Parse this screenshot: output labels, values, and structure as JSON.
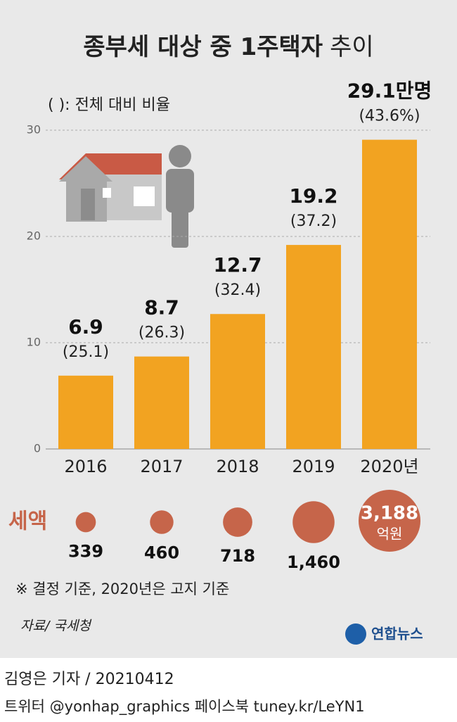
{
  "chart_data": {
    "type": "bar",
    "title": "종부세 대상 중 1주택자",
    "title_suffix": "추이",
    "ratio_note": "( ): 전체 대비 비율",
    "categories": [
      "2016",
      "2017",
      "2018",
      "2019",
      "2020년"
    ],
    "values": [
      6.9,
      8.7,
      12.7,
      19.2,
      29.1
    ],
    "value_labels": [
      "6.9",
      "8.7",
      "12.7",
      "19.2",
      "29.1만명"
    ],
    "ratios": [
      25.1,
      26.3,
      32.4,
      37.2,
      43.6
    ],
    "ratio_labels": [
      "(25.1)",
      "(26.3)",
      "(32.4)",
      "(37.2)",
      "(43.6%)"
    ],
    "color": "#f2a321",
    "ylim": [
      0,
      30
    ],
    "yticks": [
      0,
      10,
      20,
      30
    ],
    "grid": true,
    "tax_title": "세액",
    "tax_values": [
      339,
      460,
      718,
      1460,
      3188
    ],
    "tax_labels": [
      "339",
      "460",
      "718",
      "1,460",
      "3,188"
    ],
    "tax_unit": "억원",
    "tax_color": "#c6654a",
    "footnote": "※ 결정 기준, 2020년은 고지 기준",
    "source": "자료/ 국세청",
    "logo": "연합뉴스",
    "byline": "김영은 기자 / 20210412",
    "social": "트위터 @yonhap_graphics  페이스북 tuney.kr/LeYN1"
  }
}
